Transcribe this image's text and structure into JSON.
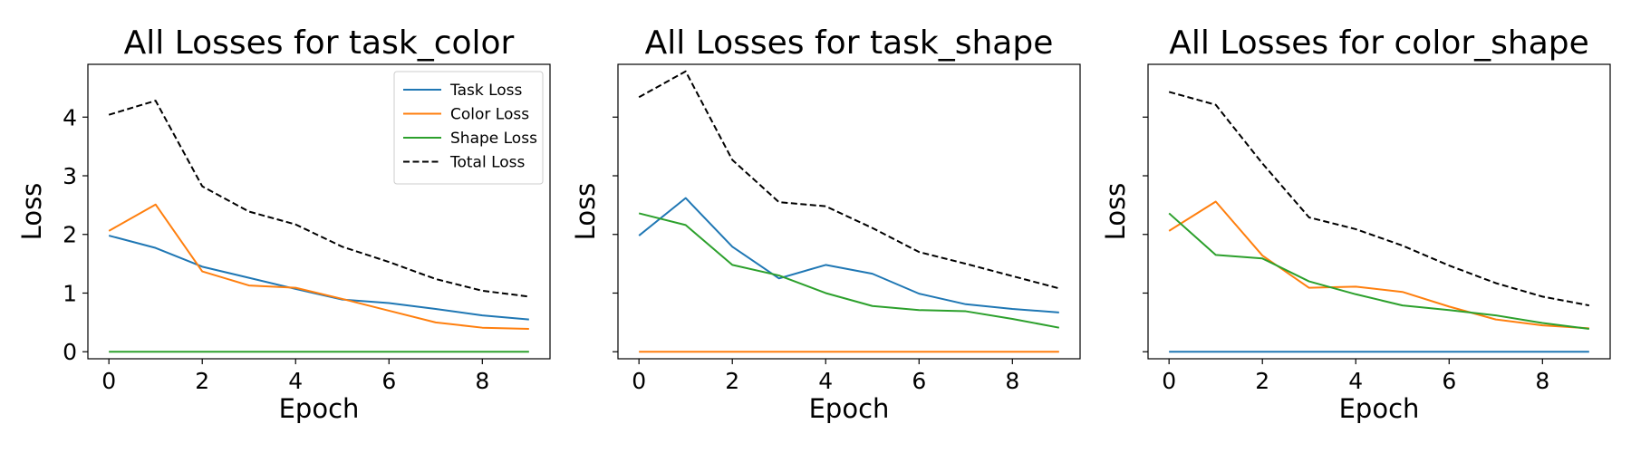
{
  "chart_data": [
    {
      "type": "line",
      "title": "All Losses for task_color",
      "xlabel": "Epoch",
      "ylabel": "Loss",
      "xlim": [
        -0.45,
        9.45
      ],
      "ylim": [
        -0.12,
        4.9
      ],
      "xticks": [
        0,
        2,
        4,
        6,
        8
      ],
      "yticks": [
        0,
        1,
        2,
        3,
        4
      ],
      "show_ytick_labels": true,
      "grid": false,
      "legend": "top-right",
      "x": [
        0,
        1,
        2,
        3,
        4,
        5,
        6,
        7,
        8,
        9
      ],
      "series": [
        {
          "name": "Task Loss",
          "color": "#1f77b4",
          "dash": "solid",
          "values": [
            1.98,
            1.77,
            1.45,
            1.26,
            1.07,
            0.89,
            0.83,
            0.73,
            0.62,
            0.55
          ]
        },
        {
          "name": "Color Loss",
          "color": "#ff7f0e",
          "dash": "solid",
          "values": [
            2.06,
            2.51,
            1.37,
            1.13,
            1.09,
            0.9,
            0.7,
            0.5,
            0.41,
            0.39
          ]
        },
        {
          "name": "Shape Loss",
          "color": "#2ca02c",
          "dash": "solid",
          "values": [
            0,
            0,
            0,
            0,
            0,
            0,
            0,
            0,
            0,
            0
          ]
        },
        {
          "name": "Total Loss",
          "color": "#000000",
          "dash": "dashed",
          "values": [
            4.04,
            4.28,
            2.82,
            2.39,
            2.17,
            1.79,
            1.53,
            1.24,
            1.04,
            0.94
          ]
        }
      ]
    },
    {
      "type": "line",
      "title": "All Losses for task_shape",
      "xlabel": "Epoch",
      "ylabel": "Loss",
      "xlim": [
        -0.45,
        9.45
      ],
      "ylim": [
        -0.12,
        4.9
      ],
      "xticks": [
        0,
        2,
        4,
        6,
        8
      ],
      "yticks": [
        0,
        1,
        2,
        3,
        4
      ],
      "show_ytick_labels": false,
      "grid": false,
      "legend": "none",
      "x": [
        0,
        1,
        2,
        3,
        4,
        5,
        6,
        7,
        8,
        9
      ],
      "series": [
        {
          "name": "Task Loss",
          "color": "#1f77b4",
          "dash": "solid",
          "values": [
            1.98,
            2.62,
            1.79,
            1.25,
            1.48,
            1.33,
            0.99,
            0.81,
            0.73,
            0.67
          ]
        },
        {
          "name": "Color Loss",
          "color": "#ff7f0e",
          "dash": "solid",
          "values": [
            0,
            0,
            0,
            0,
            0,
            0,
            0,
            0,
            0,
            0
          ]
        },
        {
          "name": "Shape Loss",
          "color": "#2ca02c",
          "dash": "solid",
          "values": [
            2.36,
            2.16,
            1.48,
            1.3,
            1.0,
            0.78,
            0.71,
            0.69,
            0.56,
            0.41
          ]
        },
        {
          "name": "Total Loss",
          "color": "#000000",
          "dash": "dashed",
          "values": [
            4.34,
            4.78,
            3.27,
            2.55,
            2.48,
            2.11,
            1.7,
            1.5,
            1.29,
            1.08
          ]
        }
      ]
    },
    {
      "type": "line",
      "title": "All Losses for color_shape",
      "xlabel": "Epoch",
      "ylabel": "Loss",
      "xlim": [
        -0.45,
        9.45
      ],
      "ylim": [
        -0.12,
        4.9
      ],
      "xticks": [
        0,
        2,
        4,
        6,
        8
      ],
      "yticks": [
        0,
        1,
        2,
        3,
        4
      ],
      "show_ytick_labels": false,
      "grid": false,
      "legend": "none",
      "x": [
        0,
        1,
        2,
        3,
        4,
        5,
        6,
        7,
        8,
        9
      ],
      "series": [
        {
          "name": "Task Loss",
          "color": "#1f77b4",
          "dash": "solid",
          "values": [
            0,
            0,
            0,
            0,
            0,
            0,
            0,
            0,
            0,
            0
          ]
        },
        {
          "name": "Color Loss",
          "color": "#ff7f0e",
          "dash": "solid",
          "values": [
            2.06,
            2.56,
            1.64,
            1.09,
            1.11,
            1.02,
            0.77,
            0.55,
            0.45,
            0.4
          ]
        },
        {
          "name": "Shape Loss",
          "color": "#2ca02c",
          "dash": "solid",
          "values": [
            2.36,
            1.65,
            1.59,
            1.2,
            0.98,
            0.79,
            0.71,
            0.62,
            0.49,
            0.39
          ]
        },
        {
          "name": "Total Loss",
          "color": "#000000",
          "dash": "dashed",
          "values": [
            4.43,
            4.21,
            3.21,
            2.29,
            2.09,
            1.81,
            1.47,
            1.17,
            0.94,
            0.79
          ]
        }
      ]
    }
  ]
}
